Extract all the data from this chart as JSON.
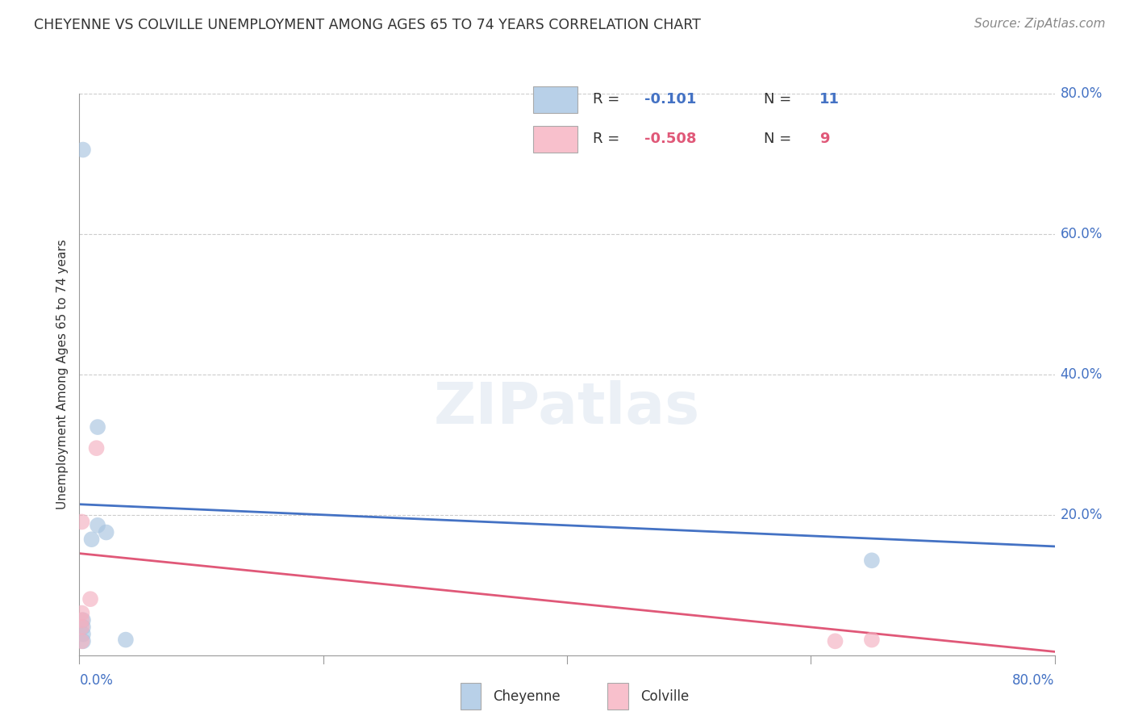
{
  "title": "CHEYENNE VS COLVILLE UNEMPLOYMENT AMONG AGES 65 TO 74 YEARS CORRELATION CHART",
  "source": "Source: ZipAtlas.com",
  "ylabel": "Unemployment Among Ages 65 to 74 years",
  "x_label_bottom_left": "0.0%",
  "x_label_bottom_right": "80.0%",
  "right_ytick_labels": [
    "80.0%",
    "60.0%",
    "40.0%",
    "20.0%"
  ],
  "right_ytick_values": [
    0.8,
    0.6,
    0.4,
    0.2
  ],
  "xlim": [
    0.0,
    0.8
  ],
  "ylim": [
    0.0,
    0.8
  ],
  "cheyenne_R": "-0.101",
  "cheyenne_N": "11",
  "colville_R": "-0.508",
  "colville_N": "9",
  "cheyenne_x": [
    0.003,
    0.003,
    0.003,
    0.003,
    0.003,
    0.01,
    0.015,
    0.015,
    0.022,
    0.65,
    0.038
  ],
  "cheyenne_y": [
    0.02,
    0.03,
    0.04,
    0.05,
    0.72,
    0.165,
    0.185,
    0.325,
    0.175,
    0.135,
    0.022
  ],
  "colville_x": [
    0.002,
    0.002,
    0.002,
    0.002,
    0.002,
    0.009,
    0.014,
    0.62,
    0.65
  ],
  "colville_y": [
    0.02,
    0.04,
    0.05,
    0.06,
    0.19,
    0.08,
    0.295,
    0.02,
    0.022
  ],
  "cheyenne_line_x": [
    0.0,
    0.8
  ],
  "cheyenne_line_y": [
    0.215,
    0.155
  ],
  "colville_line_x": [
    0.0,
    0.8
  ],
  "colville_line_y": [
    0.145,
    0.005
  ],
  "cheyenne_color": "#a8c4e0",
  "cheyenne_line_color": "#4472c4",
  "colville_color": "#f4b0c0",
  "colville_line_color": "#e05878",
  "legend_box_color_cheyenne": "#b8d0e8",
  "legend_box_color_colville": "#f8c0cc",
  "marker_size": 200,
  "marker_alpha": 0.65,
  "background_color": "#ffffff",
  "grid_color": "#cccccc",
  "title_fontsize": 12.5,
  "source_fontsize": 11,
  "axis_label_fontsize": 11,
  "tick_label_fontsize": 12,
  "legend_fontsize": 13
}
